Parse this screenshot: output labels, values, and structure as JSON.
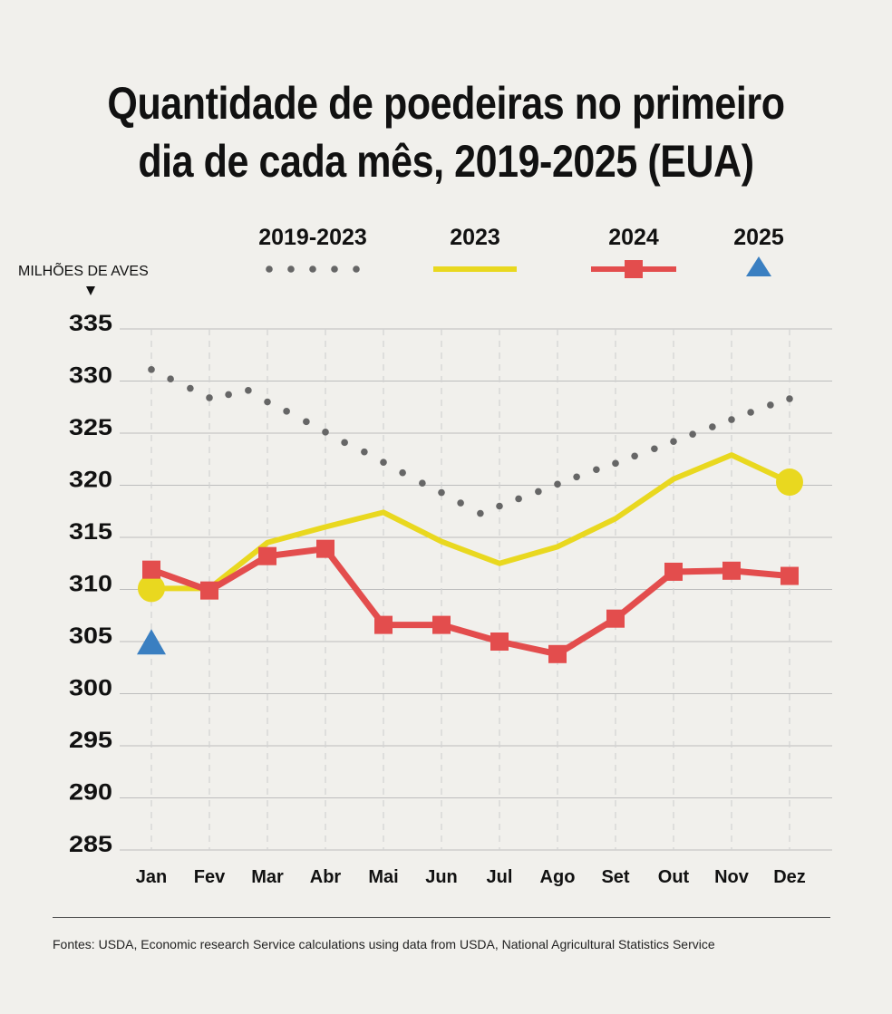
{
  "title_line1": "Quantidade de poedeiras no primeiro",
  "title_line2": "dia de cada mês, 2019-2025 (EUA)",
  "y_unit_label": "MILHÕES DE AVES",
  "source": "Fontes: USDA, Economic research Service calculations using data from USDA, National Agricultural Statistics Service",
  "colors": {
    "background": "#f1f0ec",
    "avg": "#666666",
    "y2023": "#e9d81f",
    "y2024": "#e34d4d",
    "y2025": "#3a7fc1",
    "grid": "#bdbdbd"
  },
  "chart_data": {
    "type": "line",
    "categories": [
      "Jan",
      "Fev",
      "Mar",
      "Abr",
      "Mai",
      "Jun",
      "Jul",
      "Ago",
      "Set",
      "Out",
      "Nov",
      "Dez"
    ],
    "ylim": [
      285,
      335
    ],
    "yticks": [
      285,
      290,
      295,
      300,
      305,
      310,
      315,
      320,
      325,
      330,
      335
    ],
    "grid": true,
    "legend_position": "top",
    "series": [
      {
        "name": "2019-2023",
        "style": "dotted",
        "x": [
          0,
          0.33,
          0.67,
          1,
          1.33,
          1.67,
          2,
          2.33,
          2.67,
          3,
          3.33,
          3.67,
          4,
          4.33,
          4.67,
          5,
          5.33,
          5.67,
          6,
          6.33,
          6.67,
          7,
          7.33,
          7.67,
          8,
          8.33,
          8.67,
          9,
          9.33,
          9.67,
          10,
          10.33,
          10.67,
          11
        ],
        "values": [
          331.1,
          330.2,
          329.3,
          328.4,
          328.7,
          329.1,
          328.0,
          327.1,
          326.1,
          325.1,
          324.1,
          323.2,
          322.2,
          321.2,
          320.2,
          319.3,
          318.3,
          317.3,
          318.0,
          318.7,
          319.4,
          320.1,
          320.8,
          321.5,
          322.1,
          322.8,
          323.5,
          324.2,
          324.9,
          325.6,
          326.3,
          327.0,
          327.7,
          328.3
        ]
      },
      {
        "name": "2023",
        "style": "solid",
        "x": [
          0,
          1,
          2,
          3,
          4,
          5,
          6,
          7,
          8,
          9,
          10,
          11
        ],
        "values": [
          310.1,
          310.1,
          314.5,
          316.0,
          317.4,
          314.6,
          312.5,
          314.1,
          316.8,
          320.6,
          322.9,
          320.3
        ]
      },
      {
        "name": "2024",
        "style": "square-markers",
        "x": [
          0,
          1,
          2,
          3,
          4,
          5,
          6,
          7,
          8,
          9,
          10,
          11
        ],
        "values": [
          311.9,
          309.9,
          313.2,
          313.9,
          306.6,
          306.6,
          305.0,
          303.8,
          307.2,
          311.7,
          311.8,
          311.3
        ]
      },
      {
        "name": "2025",
        "style": "triangle-marker",
        "x": [
          0
        ],
        "values": [
          304.8
        ]
      }
    ]
  }
}
